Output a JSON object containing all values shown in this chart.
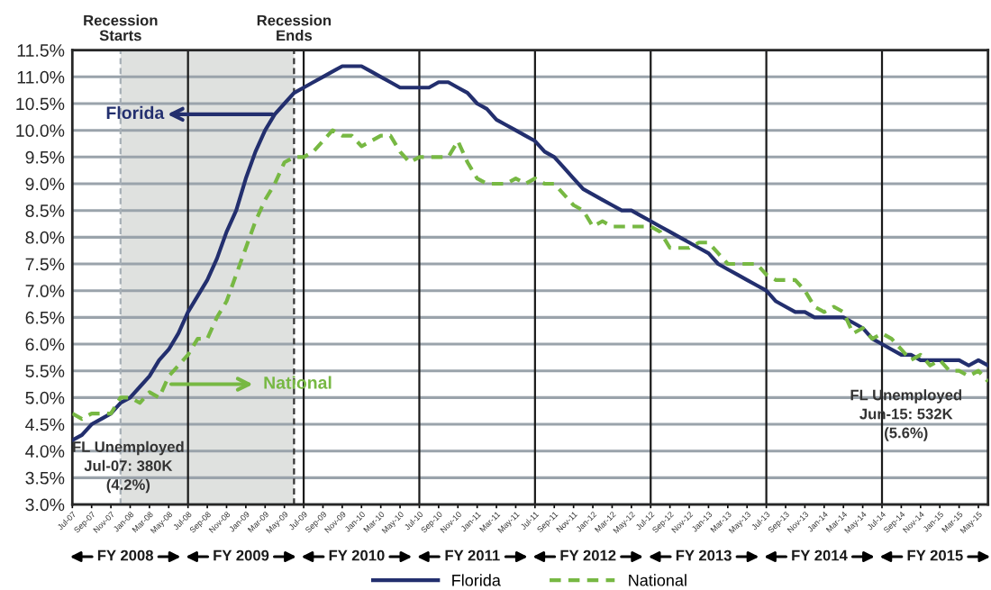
{
  "chart_data": {
    "type": "line",
    "x": [
      "2007-07",
      "2007-08",
      "2007-09",
      "2007-10",
      "2007-11",
      "2007-12",
      "2008-01",
      "2008-02",
      "2008-03",
      "2008-04",
      "2008-05",
      "2008-06",
      "2008-07",
      "2008-08",
      "2008-09",
      "2008-10",
      "2008-11",
      "2008-12",
      "2009-01",
      "2009-02",
      "2009-03",
      "2009-04",
      "2009-05",
      "2009-06",
      "2009-07",
      "2009-08",
      "2009-09",
      "2009-10",
      "2009-11",
      "2009-12",
      "2010-01",
      "2010-02",
      "2010-03",
      "2010-04",
      "2010-05",
      "2010-06",
      "2010-07",
      "2010-08",
      "2010-09",
      "2010-10",
      "2010-11",
      "2010-12",
      "2011-01",
      "2011-02",
      "2011-03",
      "2011-04",
      "2011-05",
      "2011-06",
      "2011-07",
      "2011-08",
      "2011-09",
      "2011-10",
      "2011-11",
      "2011-12",
      "2012-01",
      "2012-02",
      "2012-03",
      "2012-04",
      "2012-05",
      "2012-06",
      "2012-07",
      "2012-08",
      "2012-09",
      "2012-10",
      "2012-11",
      "2012-12",
      "2013-01",
      "2013-02",
      "2013-03",
      "2013-04",
      "2013-05",
      "2013-06",
      "2013-07",
      "2013-08",
      "2013-09",
      "2013-10",
      "2013-11",
      "2013-12",
      "2014-01",
      "2014-02",
      "2014-03",
      "2014-04",
      "2014-05",
      "2014-06",
      "2014-07",
      "2014-08",
      "2014-09",
      "2014-10",
      "2014-11",
      "2014-12",
      "2015-01",
      "2015-02",
      "2015-03",
      "2015-04",
      "2015-05",
      "2015-06"
    ],
    "series": [
      {
        "name": "Florida",
        "color": "#232f6e",
        "line_style": "solid",
        "values": [
          4.2,
          4.3,
          4.5,
          4.6,
          4.7,
          4.9,
          5.0,
          5.2,
          5.4,
          5.7,
          5.9,
          6.2,
          6.6,
          6.9,
          7.2,
          7.6,
          8.1,
          8.5,
          9.1,
          9.6,
          10.0,
          10.3,
          10.5,
          10.7,
          10.8,
          10.9,
          11.0,
          11.1,
          11.2,
          11.2,
          11.2,
          11.1,
          11.0,
          10.9,
          10.8,
          10.8,
          10.8,
          10.8,
          10.9,
          10.9,
          10.8,
          10.7,
          10.5,
          10.4,
          10.2,
          10.1,
          10.0,
          9.9,
          9.8,
          9.6,
          9.5,
          9.3,
          9.1,
          8.9,
          8.8,
          8.7,
          8.6,
          8.5,
          8.5,
          8.4,
          8.3,
          8.2,
          8.1,
          8.0,
          7.9,
          7.8,
          7.7,
          7.5,
          7.4,
          7.3,
          7.2,
          7.1,
          7.0,
          6.8,
          6.7,
          6.6,
          6.6,
          6.5,
          6.5,
          6.5,
          6.5,
          6.4,
          6.3,
          6.1,
          6.0,
          5.9,
          5.8,
          5.8,
          5.7,
          5.7,
          5.7,
          5.7,
          5.7,
          5.6,
          5.7,
          5.6
        ]
      },
      {
        "name": "National",
        "color": "#77b843",
        "line_style": "dashed",
        "values": [
          4.7,
          4.6,
          4.7,
          4.7,
          4.7,
          5.0,
          5.0,
          4.9,
          5.1,
          5.0,
          5.4,
          5.6,
          5.8,
          6.1,
          6.1,
          6.5,
          6.8,
          7.3,
          7.8,
          8.3,
          8.7,
          9.0,
          9.4,
          9.5,
          9.5,
          9.6,
          9.8,
          10.0,
          9.9,
          9.9,
          9.7,
          9.8,
          9.9,
          9.9,
          9.6,
          9.4,
          9.5,
          9.5,
          9.5,
          9.5,
          9.8,
          9.4,
          9.1,
          9.0,
          9.0,
          9.0,
          9.1,
          9.0,
          9.1,
          9.0,
          9.0,
          8.8,
          8.6,
          8.5,
          8.2,
          8.3,
          8.2,
          8.2,
          8.2,
          8.2,
          8.2,
          8.1,
          7.8,
          7.8,
          7.8,
          7.9,
          7.9,
          7.7,
          7.5,
          7.5,
          7.5,
          7.5,
          7.3,
          7.2,
          7.2,
          7.2,
          7.0,
          6.7,
          6.6,
          6.7,
          6.6,
          6.2,
          6.3,
          6.1,
          6.2,
          6.1,
          5.9,
          5.7,
          5.8,
          5.6,
          5.7,
          5.5,
          5.5,
          5.4,
          5.5,
          5.3
        ]
      }
    ],
    "xlim": [
      "2007-07",
      "2015-06"
    ],
    "xticks": [
      {
        "value": "2007-07",
        "label": "Jul-07"
      },
      {
        "value": "2007-09",
        "label": "Sep-07"
      },
      {
        "value": "2007-11",
        "label": "Nov-07"
      },
      {
        "value": "2008-01",
        "label": "Jan-08"
      },
      {
        "value": "2008-03",
        "label": "Mar-08"
      },
      {
        "value": "2008-05",
        "label": "May-08"
      },
      {
        "value": "2008-07",
        "label": "Jul-08"
      },
      {
        "value": "2008-09",
        "label": "Sep-08"
      },
      {
        "value": "2008-11",
        "label": "Nov-08"
      },
      {
        "value": "2009-01",
        "label": "Jan-09"
      },
      {
        "value": "2009-03",
        "label": "Mar-09"
      },
      {
        "value": "2009-05",
        "label": "May-09"
      },
      {
        "value": "2009-07",
        "label": "Jul-09"
      },
      {
        "value": "2009-09",
        "label": "Sep-09"
      },
      {
        "value": "2009-11",
        "label": "Nov-09"
      },
      {
        "value": "2010-01",
        "label": "Jan-10"
      },
      {
        "value": "2010-03",
        "label": "Mar-10"
      },
      {
        "value": "2010-05",
        "label": "May-10"
      },
      {
        "value": "2010-07",
        "label": "Jul-10"
      },
      {
        "value": "2010-09",
        "label": "Sep-10"
      },
      {
        "value": "2010-11",
        "label": "Nov-10"
      },
      {
        "value": "2011-01",
        "label": "Jan-11"
      },
      {
        "value": "2011-03",
        "label": "Mar-11"
      },
      {
        "value": "2011-05",
        "label": "May-11"
      },
      {
        "value": "2011-07",
        "label": "Jul-11"
      },
      {
        "value": "2011-09",
        "label": "Sep-11"
      },
      {
        "value": "2011-11",
        "label": "Nov-11"
      },
      {
        "value": "2012-01",
        "label": "Jan-12"
      },
      {
        "value": "2012-03",
        "label": "Mar-12"
      },
      {
        "value": "2012-05",
        "label": "May-12"
      },
      {
        "value": "2012-07",
        "label": "Jul-12"
      },
      {
        "value": "2012-09",
        "label": "Sep-12"
      },
      {
        "value": "2012-11",
        "label": "Nov-12"
      },
      {
        "value": "2013-01",
        "label": "Jan-13"
      },
      {
        "value": "2013-03",
        "label": "Mar-13"
      },
      {
        "value": "2013-05",
        "label": "May-13"
      },
      {
        "value": "2013-07",
        "label": "Jul-13"
      },
      {
        "value": "2013-09",
        "label": "Sep-13"
      },
      {
        "value": "2013-11",
        "label": "Nov-13"
      },
      {
        "value": "2014-01",
        "label": "Jan-14"
      },
      {
        "value": "2014-03",
        "label": "Mar-14"
      },
      {
        "value": "2014-05",
        "label": "May-14"
      },
      {
        "value": "2014-07",
        "label": "Jul-14"
      },
      {
        "value": "2014-09",
        "label": "Sep-14"
      },
      {
        "value": "2014-11",
        "label": "Nov-14"
      },
      {
        "value": "2015-01",
        "label": "Jan-15"
      },
      {
        "value": "2015-03",
        "label": "Mar-15"
      },
      {
        "value": "2015-05",
        "label": "May-15"
      }
    ],
    "ylim": [
      3.0,
      11.5
    ],
    "yticks": [
      {
        "value": 3.0,
        "label": "3.0%"
      },
      {
        "value": 3.5,
        "label": "3.5%"
      },
      {
        "value": 4.0,
        "label": "4.0%"
      },
      {
        "value": 4.5,
        "label": "4.5%"
      },
      {
        "value": 5.0,
        "label": "5.0%"
      },
      {
        "value": 5.5,
        "label": "5.5%"
      },
      {
        "value": 6.0,
        "label": "6.0%"
      },
      {
        "value": 6.5,
        "label": "6.5%"
      },
      {
        "value": 7.0,
        "label": "7.0%"
      },
      {
        "value": 7.5,
        "label": "7.5%"
      },
      {
        "value": 8.0,
        "label": "8.0%"
      },
      {
        "value": 8.5,
        "label": "8.5%"
      },
      {
        "value": 9.0,
        "label": "9.0%"
      },
      {
        "value": 9.5,
        "label": "9.5%"
      },
      {
        "value": 10.0,
        "label": "10.0%"
      },
      {
        "value": 10.5,
        "label": "10.5%"
      },
      {
        "value": 11.0,
        "label": "11.0%"
      },
      {
        "value": 11.5,
        "label": "11.5%"
      }
    ],
    "bands": [
      {
        "axis": "x",
        "from": "2007-12",
        "to": "2009-06",
        "color": "#dfe1df"
      }
    ],
    "ref_lines": [
      {
        "axis": "x",
        "value": "2007-12",
        "label": "Recession Starts",
        "color": "#a6aeb5",
        "line_style": "dashed"
      },
      {
        "axis": "x",
        "value": "2009-06",
        "label": "Recession Ends",
        "color": "#333333",
        "line_style": "dashed"
      },
      {
        "axis": "x",
        "value": "2008-07",
        "color": "#1a1a1a",
        "line_style": "solid"
      },
      {
        "axis": "x",
        "value": "2009-07",
        "color": "#1a1a1a",
        "line_style": "solid"
      },
      {
        "axis": "x",
        "value": "2010-07",
        "color": "#1a1a1a",
        "line_style": "solid"
      },
      {
        "axis": "x",
        "value": "2011-07",
        "color": "#1a1a1a",
        "line_style": "solid"
      },
      {
        "axis": "x",
        "value": "2012-07",
        "color": "#1a1a1a",
        "line_style": "solid"
      },
      {
        "axis": "x",
        "value": "2013-07",
        "color": "#1a1a1a",
        "line_style": "solid"
      },
      {
        "axis": "x",
        "value": "2014-07",
        "color": "#1a1a1a",
        "line_style": "solid"
      }
    ],
    "annotations": [
      {
        "text": "Florida",
        "x": "2009-04",
        "y": 10.3
      },
      "National",
      {
        "text": "FL Unemployed\nJul-07: 380K\n(4.2%)",
        "x": "2007-07",
        "y": 4.2
      },
      {
        "text": "FL Unemployed\nJun-15: 532K\n(5.6%)",
        "x": "2015-06",
        "y": 5.6
      },
      "FY 2008",
      "FY 2009",
      "FY 2010",
      "FY 2011",
      "FY 2012",
      "FY 2013",
      "FY 2014",
      "FY 2015"
    ],
    "grid": "y",
    "legend": "bottom",
    "marker": "none"
  }
}
